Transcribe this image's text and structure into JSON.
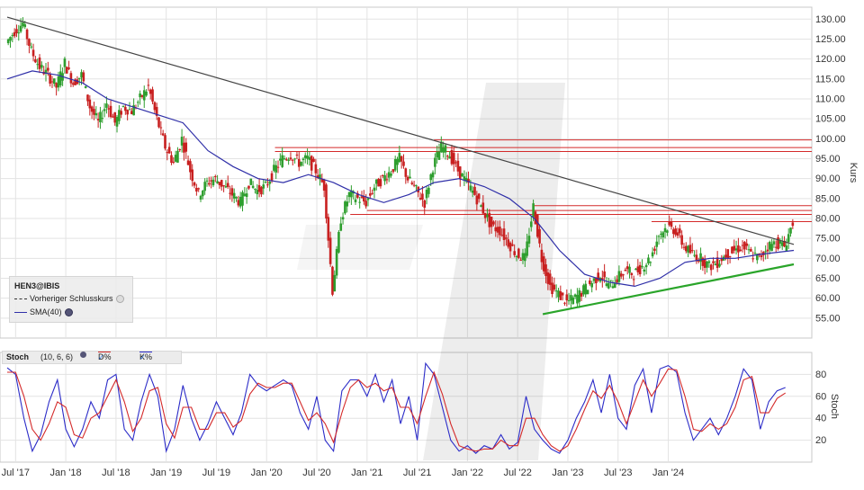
{
  "instrument": "HEN3@IBIS",
  "main_panel": {
    "y_axis_label": "Kurs",
    "y_ticks": [
      "55.00",
      "60.00",
      "65.00",
      "70.00",
      "75.00",
      "80.00",
      "85.00",
      "90.00",
      "95.00",
      "100.00",
      "105.00",
      "110.00",
      "115.00",
      "120.00",
      "125.00",
      "130.00"
    ],
    "legend": {
      "title": "HEN3@IBIS",
      "items": [
        {
          "label": "Vorheriger Schlusskurs",
          "color": "#333333",
          "style": "dashed",
          "icon": "settings-icon"
        },
        {
          "label": "SMA(40)",
          "color": "#2f2fa8",
          "style": "solid",
          "icon": "settings-icon"
        }
      ]
    }
  },
  "stoch_panel": {
    "title": "Stoch",
    "params": "(10, 6, 6)",
    "y_axis_label": "Stoch",
    "y_ticks": [
      "20",
      "40",
      "60",
      "80"
    ],
    "series": [
      {
        "label": "D%",
        "color": "#d42a2a"
      },
      {
        "label": "K%",
        "color": "#2c2cc8"
      }
    ]
  },
  "x_ticks": [
    "Jul '17",
    "Jan '18",
    "Jul '18",
    "Jan '19",
    "Jul '19",
    "Jan '20",
    "Jul '20",
    "Jan '21",
    "Jul '21",
    "Jan '22",
    "Jul '22",
    "Jan '23",
    "Jul '23",
    "Jan '24"
  ],
  "colors": {
    "up": "#2e9e2e",
    "down": "#c82020",
    "sma": "#2f2fa8",
    "resistance": "#d42a2a",
    "support": "#2aa52a",
    "trend": "#444444"
  },
  "chart_data": {
    "type": "line",
    "title": "",
    "x_unit": "months since Jun 2017",
    "ylim": [
      50,
      133
    ],
    "price": [
      [
        0,
        124
      ],
      [
        1,
        127
      ],
      [
        2,
        129
      ],
      [
        3,
        122
      ],
      [
        4,
        118
      ],
      [
        5,
        116
      ],
      [
        6,
        113
      ],
      [
        7,
        119
      ],
      [
        8,
        114
      ],
      [
        9,
        116
      ],
      [
        10,
        108
      ],
      [
        11,
        104
      ],
      [
        12,
        109
      ],
      [
        13,
        104
      ],
      [
        14,
        108
      ],
      [
        15,
        107
      ],
      [
        16,
        110
      ],
      [
        17,
        113
      ],
      [
        18,
        105
      ],
      [
        19,
        98
      ],
      [
        20,
        94
      ],
      [
        21,
        100
      ],
      [
        22,
        92
      ],
      [
        23,
        86
      ],
      [
        24,
        89
      ],
      [
        25,
        90
      ],
      [
        26,
        88
      ],
      [
        27,
        86
      ],
      [
        28,
        84
      ],
      [
        29,
        89
      ],
      [
        30,
        87
      ],
      [
        31,
        88
      ],
      [
        32,
        92
      ],
      [
        33,
        95
      ],
      [
        34,
        96
      ],
      [
        35,
        94
      ],
      [
        36,
        95
      ],
      [
        37,
        92
      ],
      [
        38,
        88
      ],
      [
        39,
        62
      ],
      [
        40,
        80
      ],
      [
        41,
        86
      ],
      [
        42,
        85
      ],
      [
        43,
        84
      ],
      [
        44,
        88
      ],
      [
        45,
        90
      ],
      [
        46,
        92
      ],
      [
        47,
        95
      ],
      [
        48,
        90
      ],
      [
        49,
        87
      ],
      [
        50,
        84
      ],
      [
        51,
        93
      ],
      [
        52,
        98
      ],
      [
        53,
        96
      ],
      [
        54,
        92
      ],
      [
        55,
        89
      ],
      [
        56,
        86
      ],
      [
        57,
        82
      ],
      [
        58,
        78
      ],
      [
        59,
        77
      ],
      [
        60,
        74
      ],
      [
        61,
        71
      ],
      [
        62,
        70
      ],
      [
        63,
        83
      ],
      [
        64,
        70
      ],
      [
        65,
        63
      ],
      [
        66,
        61
      ],
      [
        67,
        59
      ],
      [
        68,
        60
      ],
      [
        69,
        62
      ],
      [
        70,
        64
      ],
      [
        71,
        66
      ],
      [
        72,
        63
      ],
      [
        73,
        65
      ],
      [
        74,
        67
      ],
      [
        75,
        66
      ],
      [
        76,
        68
      ],
      [
        77,
        70
      ],
      [
        78,
        76
      ],
      [
        79,
        78
      ],
      [
        80,
        77
      ],
      [
        81,
        73
      ],
      [
        82,
        71
      ],
      [
        83,
        70
      ],
      [
        84,
        68
      ],
      [
        85,
        69
      ],
      [
        86,
        71
      ],
      [
        87,
        72
      ],
      [
        88,
        73
      ],
      [
        89,
        71
      ],
      [
        90,
        70
      ],
      [
        91,
        73
      ],
      [
        92,
        74
      ],
      [
        93,
        73
      ],
      [
        94,
        79
      ]
    ],
    "sma40": [
      [
        0,
        115
      ],
      [
        3,
        117
      ],
      [
        6,
        116
      ],
      [
        9,
        114
      ],
      [
        12,
        110
      ],
      [
        15,
        108
      ],
      [
        18,
        106
      ],
      [
        21,
        104
      ],
      [
        24,
        97
      ],
      [
        27,
        93
      ],
      [
        30,
        90
      ],
      [
        33,
        89
      ],
      [
        36,
        91
      ],
      [
        39,
        89
      ],
      [
        42,
        86
      ],
      [
        45,
        84
      ],
      [
        48,
        86
      ],
      [
        51,
        89
      ],
      [
        54,
        90
      ],
      [
        57,
        88
      ],
      [
        60,
        85
      ],
      [
        63,
        80
      ],
      [
        66,
        72
      ],
      [
        69,
        66
      ],
      [
        72,
        64
      ],
      [
        75,
        63
      ],
      [
        78,
        65
      ],
      [
        81,
        69
      ],
      [
        84,
        70
      ],
      [
        87,
        70
      ],
      [
        90,
        71
      ],
      [
        94,
        72
      ]
    ],
    "trend_line": [
      [
        0,
        130.5
      ],
      [
        94,
        73.5
      ]
    ],
    "support_line": [
      [
        64,
        56
      ],
      [
        94,
        68.5
      ]
    ],
    "resistance_levels": [
      {
        "value": 99.7,
        "from": 51,
        "to": 94
      },
      {
        "value": 97.8,
        "from": 32,
        "to": 94
      },
      {
        "value": 96.8,
        "from": 32,
        "to": 94
      },
      {
        "value": 83.2,
        "from": 63,
        "to": 94
      },
      {
        "value": 82.0,
        "from": 43,
        "to": 94
      },
      {
        "value": 81.0,
        "from": 41,
        "to": 64
      },
      {
        "value": 79.2,
        "from": 77,
        "to": 94
      }
    ],
    "stoch_ylim": [
      0,
      100
    ],
    "stoch_k": [
      [
        0,
        86
      ],
      [
        1,
        80
      ],
      [
        2,
        40
      ],
      [
        3,
        10
      ],
      [
        4,
        25
      ],
      [
        5,
        55
      ],
      [
        6,
        75
      ],
      [
        7,
        30
      ],
      [
        8,
        14
      ],
      [
        9,
        30
      ],
      [
        10,
        55
      ],
      [
        11,
        40
      ],
      [
        12,
        75
      ],
      [
        13,
        80
      ],
      [
        14,
        30
      ],
      [
        15,
        20
      ],
      [
        16,
        55
      ],
      [
        17,
        80
      ],
      [
        18,
        60
      ],
      [
        19,
        10
      ],
      [
        20,
        30
      ],
      [
        21,
        70
      ],
      [
        22,
        40
      ],
      [
        23,
        20
      ],
      [
        24,
        35
      ],
      [
        25,
        55
      ],
      [
        26,
        40
      ],
      [
        27,
        25
      ],
      [
        28,
        45
      ],
      [
        29,
        80
      ],
      [
        30,
        70
      ],
      [
        31,
        65
      ],
      [
        32,
        70
      ],
      [
        33,
        75
      ],
      [
        34,
        70
      ],
      [
        35,
        45
      ],
      [
        36,
        30
      ],
      [
        37,
        60
      ],
      [
        38,
        20
      ],
      [
        39,
        10
      ],
      [
        40,
        65
      ],
      [
        41,
        75
      ],
      [
        42,
        75
      ],
      [
        43,
        60
      ],
      [
        44,
        80
      ],
      [
        45,
        55
      ],
      [
        46,
        75
      ],
      [
        47,
        35
      ],
      [
        48,
        60
      ],
      [
        49,
        20
      ],
      [
        50,
        90
      ],
      [
        51,
        80
      ],
      [
        52,
        50
      ],
      [
        53,
        20
      ],
      [
        54,
        10
      ],
      [
        55,
        15
      ],
      [
        56,
        8
      ],
      [
        57,
        15
      ],
      [
        58,
        12
      ],
      [
        59,
        25
      ],
      [
        60,
        12
      ],
      [
        61,
        18
      ],
      [
        62,
        60
      ],
      [
        63,
        30
      ],
      [
        64,
        20
      ],
      [
        65,
        12
      ],
      [
        66,
        8
      ],
      [
        67,
        20
      ],
      [
        68,
        40
      ],
      [
        69,
        55
      ],
      [
        70,
        75
      ],
      [
        71,
        45
      ],
      [
        72,
        80
      ],
      [
        73,
        40
      ],
      [
        74,
        30
      ],
      [
        75,
        70
      ],
      [
        76,
        85
      ],
      [
        77,
        45
      ],
      [
        78,
        85
      ],
      [
        79,
        88
      ],
      [
        80,
        82
      ],
      [
        81,
        45
      ],
      [
        82,
        20
      ],
      [
        83,
        30
      ],
      [
        84,
        40
      ],
      [
        85,
        25
      ],
      [
        86,
        40
      ],
      [
        87,
        60
      ],
      [
        88,
        85
      ],
      [
        89,
        75
      ],
      [
        90,
        30
      ],
      [
        91,
        55
      ],
      [
        92,
        65
      ],
      [
        93,
        68
      ]
    ],
    "stoch_d": [
      [
        0,
        82
      ],
      [
        1,
        82
      ],
      [
        2,
        60
      ],
      [
        3,
        30
      ],
      [
        4,
        20
      ],
      [
        5,
        35
      ],
      [
        6,
        55
      ],
      [
        7,
        50
      ],
      [
        8,
        25
      ],
      [
        9,
        22
      ],
      [
        10,
        40
      ],
      [
        11,
        45
      ],
      [
        12,
        60
      ],
      [
        13,
        75
      ],
      [
        14,
        55
      ],
      [
        15,
        28
      ],
      [
        16,
        40
      ],
      [
        17,
        65
      ],
      [
        18,
        68
      ],
      [
        19,
        35
      ],
      [
        20,
        22
      ],
      [
        21,
        50
      ],
      [
        22,
        50
      ],
      [
        23,
        30
      ],
      [
        24,
        30
      ],
      [
        25,
        45
      ],
      [
        26,
        45
      ],
      [
        27,
        32
      ],
      [
        28,
        38
      ],
      [
        29,
        62
      ],
      [
        30,
        72
      ],
      [
        31,
        68
      ],
      [
        32,
        68
      ],
      [
        33,
        72
      ],
      [
        34,
        72
      ],
      [
        35,
        55
      ],
      [
        36,
        38
      ],
      [
        37,
        45
      ],
      [
        38,
        35
      ],
      [
        39,
        18
      ],
      [
        40,
        45
      ],
      [
        41,
        68
      ],
      [
        42,
        75
      ],
      [
        43,
        68
      ],
      [
        44,
        72
      ],
      [
        45,
        65
      ],
      [
        46,
        68
      ],
      [
        47,
        50
      ],
      [
        48,
        50
      ],
      [
        49,
        35
      ],
      [
        50,
        60
      ],
      [
        51,
        82
      ],
      [
        52,
        62
      ],
      [
        53,
        35
      ],
      [
        54,
        15
      ],
      [
        55,
        12
      ],
      [
        56,
        10
      ],
      [
        57,
        12
      ],
      [
        58,
        12
      ],
      [
        59,
        20
      ],
      [
        60,
        15
      ],
      [
        61,
        15
      ],
      [
        62,
        40
      ],
      [
        63,
        40
      ],
      [
        64,
        25
      ],
      [
        65,
        15
      ],
      [
        66,
        10
      ],
      [
        67,
        15
      ],
      [
        68,
        30
      ],
      [
        69,
        48
      ],
      [
        70,
        65
      ],
      [
        71,
        58
      ],
      [
        72,
        70
      ],
      [
        73,
        55
      ],
      [
        74,
        35
      ],
      [
        75,
        55
      ],
      [
        76,
        75
      ],
      [
        77,
        60
      ],
      [
        78,
        72
      ],
      [
        79,
        85
      ],
      [
        80,
        84
      ],
      [
        81,
        60
      ],
      [
        82,
        30
      ],
      [
        83,
        28
      ],
      [
        84,
        35
      ],
      [
        85,
        30
      ],
      [
        86,
        35
      ],
      [
        87,
        50
      ],
      [
        88,
        75
      ],
      [
        89,
        78
      ],
      [
        90,
        45
      ],
      [
        91,
        45
      ],
      [
        92,
        58
      ],
      [
        93,
        63
      ]
    ]
  }
}
